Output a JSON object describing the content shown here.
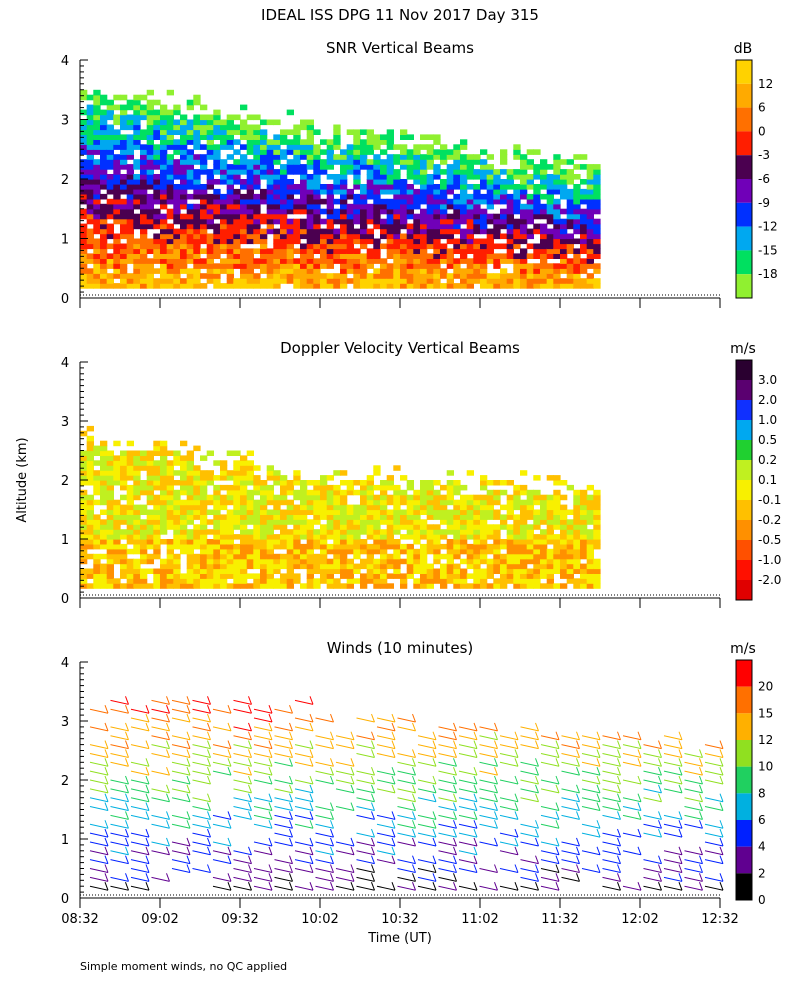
{
  "figure": {
    "title": "IDEAL ISS DPG  11 Nov 2017 Day 315",
    "ylabel": "Altitude (km)",
    "xlabel": "Time (UT)",
    "footnote": "Simple moment winds, no QC applied"
  },
  "chart_data": [
    {
      "type": "heatmap",
      "title": "SNR Vertical Beams",
      "x_ticks": [
        "08:32",
        "09:02",
        "09:32",
        "10:02",
        "10:32",
        "11:02",
        "11:32",
        "12:02",
        "12:32"
      ],
      "ylim": [
        0,
        4
      ],
      "y_ticks": [
        "0",
        "1",
        "2",
        "3",
        "4"
      ],
      "colorbar": {
        "unit": "dB",
        "labels": [
          "12",
          "6",
          "0",
          "-3",
          "-6",
          "-9",
          "-12",
          "-15",
          "-18"
        ],
        "colors": [
          "#ffd200",
          "#ffaa00",
          "#ff7000",
          "#ff1e00",
          "#4b0050",
          "#7000b8",
          "#0030ff",
          "#00a8f0",
          "#00e060",
          "#90f030"
        ]
      },
      "legend": "right"
    },
    {
      "type": "heatmap",
      "title": "Doppler Velocity Vertical Beams",
      "x_ticks": [
        "08:32",
        "09:02",
        "09:32",
        "10:02",
        "10:32",
        "11:02",
        "11:32",
        "12:02",
        "12:32"
      ],
      "ylim": [
        0,
        4
      ],
      "y_ticks": [
        "0",
        "1",
        "2",
        "3",
        "4"
      ],
      "colorbar": {
        "unit": "m/s",
        "labels": [
          "3.0",
          "2.0",
          "1.0",
          "0.5",
          "0.2",
          "0.1",
          "-0.1",
          "-0.2",
          "-0.5",
          "-1.0",
          "-2.0"
        ],
        "colors": [
          "#2a0030",
          "#5a0070",
          "#1030ff",
          "#00a8f0",
          "#20d030",
          "#c0f020",
          "#f8f000",
          "#ffc000",
          "#ff9000",
          "#ff5000",
          "#ff1000",
          "#e00000"
        ]
      },
      "legend": "right"
    },
    {
      "type": "scatter",
      "title": "Winds (10 minutes)",
      "x_ticks": [
        "08:32",
        "09:02",
        "09:32",
        "10:02",
        "10:32",
        "11:02",
        "11:32",
        "12:02",
        "12:32"
      ],
      "ylim": [
        0,
        4
      ],
      "y_ticks": [
        "0",
        "1",
        "2",
        "3",
        "4"
      ],
      "colorbar": {
        "unit": "m/s",
        "labels": [
          "20",
          "15",
          "12",
          "10",
          "8",
          "6",
          "4",
          "2",
          "0"
        ],
        "colors": [
          "#ff0000",
          "#ff7000",
          "#ffb000",
          "#90e020",
          "#20d060",
          "#00b0e0",
          "#0020ff",
          "#600090",
          "#000000"
        ]
      },
      "legend": "right"
    }
  ]
}
